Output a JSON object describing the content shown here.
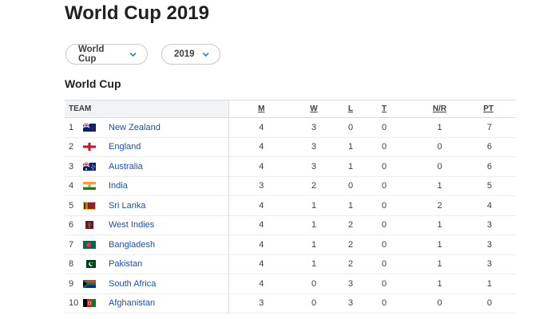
{
  "page": {
    "title": "World Cup 2019"
  },
  "filters": {
    "tournament": "World Cup",
    "season": "2019"
  },
  "section": {
    "title": "World Cup"
  },
  "table": {
    "columns": {
      "team": "TEAM",
      "m": "M",
      "w": "W",
      "l": "L",
      "t": "T",
      "nr": "N/R",
      "pt": "PT"
    },
    "rows": [
      {
        "rank": "1",
        "team": "New Zealand",
        "flag": "new-zealand-flag",
        "m": "4",
        "w": "3",
        "l": "0",
        "t": "0",
        "nr": "1",
        "pt": "7"
      },
      {
        "rank": "2",
        "team": "England",
        "flag": "england-flag",
        "m": "4",
        "w": "3",
        "l": "1",
        "t": "0",
        "nr": "0",
        "pt": "6"
      },
      {
        "rank": "3",
        "team": "Australia",
        "flag": "australia-flag",
        "m": "4",
        "w": "3",
        "l": "1",
        "t": "0",
        "nr": "0",
        "pt": "6"
      },
      {
        "rank": "4",
        "team": "India",
        "flag": "india-flag",
        "m": "3",
        "w": "2",
        "l": "0",
        "t": "0",
        "nr": "1",
        "pt": "5"
      },
      {
        "rank": "5",
        "team": "Sri Lanka",
        "flag": "sri-lanka-flag",
        "m": "4",
        "w": "1",
        "l": "1",
        "t": "0",
        "nr": "2",
        "pt": "4"
      },
      {
        "rank": "6",
        "team": "West Indies",
        "flag": "west-indies-flag",
        "m": "4",
        "w": "1",
        "l": "2",
        "t": "0",
        "nr": "1",
        "pt": "3"
      },
      {
        "rank": "7",
        "team": "Bangladesh",
        "flag": "bangladesh-flag",
        "m": "4",
        "w": "1",
        "l": "2",
        "t": "0",
        "nr": "1",
        "pt": "3"
      },
      {
        "rank": "8",
        "team": "Pakistan",
        "flag": "pakistan-flag",
        "m": "4",
        "w": "1",
        "l": "2",
        "t": "0",
        "nr": "1",
        "pt": "3"
      },
      {
        "rank": "9",
        "team": "South Africa",
        "flag": "south-africa-flag",
        "m": "4",
        "w": "0",
        "l": "3",
        "t": "0",
        "nr": "1",
        "pt": "1"
      },
      {
        "rank": "10",
        "team": "Afghanistan",
        "flag": "afghanistan-flag",
        "m": "3",
        "w": "0",
        "l": "3",
        "t": "0",
        "nr": "0",
        "pt": "0"
      }
    ]
  },
  "colors": {
    "link": "#1a4fb4",
    "text": "#202124",
    "border": "#dadce0",
    "header_bg": "#f1f3f4"
  }
}
